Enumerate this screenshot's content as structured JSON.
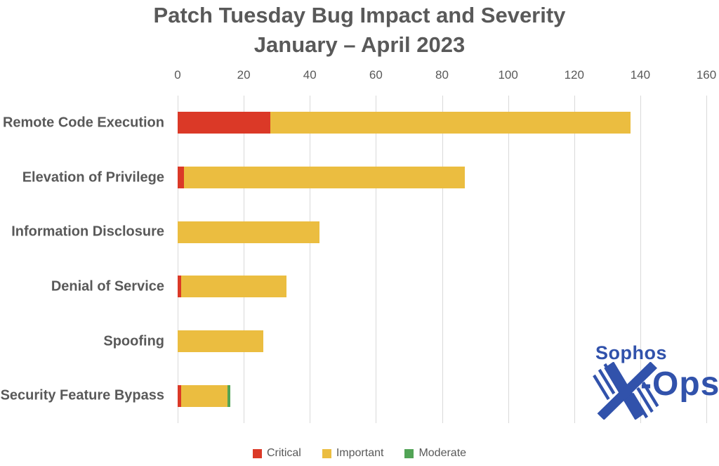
{
  "chart_data": {
    "type": "bar",
    "orientation": "horizontal-stacked",
    "title": "Patch Tuesday Bug Impact and Severity",
    "subtitle": "January – April 2023",
    "categories": [
      "Remote Code Execution",
      "Elevation of Privilege",
      "Information Disclosure",
      "Denial of Service",
      "Spoofing",
      "Security Feature Bypass"
    ],
    "series": [
      {
        "name": "Critical",
        "color": "#DB3927",
        "values": [
          28,
          2,
          0,
          1,
          0,
          1
        ]
      },
      {
        "name": "Important",
        "color": "#EBBD40",
        "values": [
          109,
          85,
          43,
          32,
          26,
          14
        ]
      },
      {
        "name": "Moderate",
        "color": "#52A456",
        "values": [
          0,
          0,
          0,
          0,
          0,
          1
        ]
      }
    ],
    "totals": [
      137,
      87,
      43,
      33,
      26,
      16
    ],
    "xlabel": "",
    "ylabel": "",
    "xlim": [
      0,
      160
    ],
    "xticks": [
      0,
      20,
      40,
      60,
      80,
      100,
      120,
      140,
      160
    ],
    "grid": "vertical",
    "legend_position": "bottom",
    "axis_position": "top"
  },
  "colors": {
    "title_text": "#595959",
    "axis_text": "#595959",
    "gridline": "#d9d9d9",
    "background": "#ffffff",
    "logo_blue": "#3152AB"
  },
  "logo": {
    "brand": "Sophos",
    "team": "-Ops",
    "x_icon": "x-ops-x"
  }
}
